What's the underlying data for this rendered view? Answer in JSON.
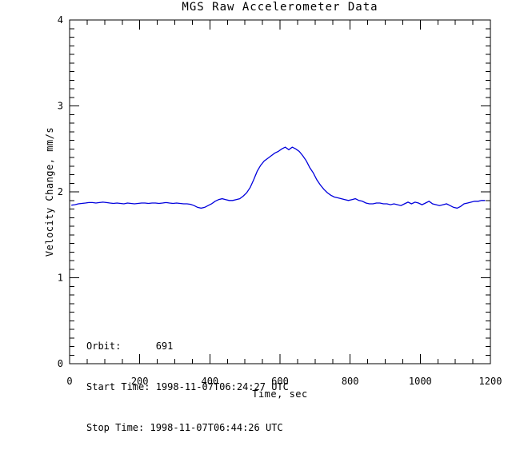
{
  "title": "MGS Raw Accelerometer Data",
  "annotations": {
    "orbit_line": "Orbit:      691",
    "start_line": "Start Time: 1998-11-07T06:24:27 UTC",
    "stop_line": "Stop Time: 1998-11-07T06:44:26 UTC"
  },
  "chart_data": {
    "type": "line",
    "title": "MGS Raw Accelerometer Data",
    "xlabel": "Time, sec",
    "ylabel": "Velocity Change, mm/s",
    "xlim": [
      0,
      1200
    ],
    "ylim": [
      0,
      4
    ],
    "x_major_ticks": [
      0,
      200,
      400,
      600,
      800,
      1000,
      1200
    ],
    "x_minor_step": 50,
    "y_major_ticks": [
      0,
      1,
      2,
      3,
      4
    ],
    "y_minor_step": 0.1,
    "grid": false,
    "legend": "none",
    "line_color": "#0000dd",
    "axis_color": "#000000",
    "background_color": "#ffffff",
    "annotations": [
      "Orbit:      691",
      "Start Time: 1998-11-07T06:24:27 UTC",
      "Stop Time: 1998-11-07T06:44:26 UTC"
    ],
    "series": [
      {
        "name": "velocity_change_mm_s",
        "x": [
          5,
          15,
          25,
          35,
          45,
          55,
          65,
          75,
          85,
          95,
          105,
          115,
          125,
          135,
          145,
          155,
          165,
          175,
          185,
          195,
          205,
          215,
          225,
          235,
          245,
          255,
          265,
          275,
          285,
          295,
          305,
          315,
          325,
          335,
          345,
          355,
          365,
          375,
          385,
          395,
          405,
          415,
          425,
          435,
          445,
          455,
          465,
          475,
          485,
          495,
          505,
          515,
          525,
          535,
          545,
          555,
          565,
          575,
          585,
          595,
          605,
          615,
          625,
          635,
          645,
          655,
          665,
          675,
          685,
          695,
          705,
          715,
          725,
          735,
          745,
          755,
          765,
          775,
          785,
          795,
          805,
          815,
          825,
          835,
          845,
          855,
          865,
          875,
          885,
          895,
          905,
          915,
          925,
          935,
          945,
          955,
          965,
          975,
          985,
          995,
          1005,
          1015,
          1025,
          1035,
          1045,
          1055,
          1065,
          1075,
          1085,
          1095,
          1105,
          1115,
          1125,
          1135,
          1145,
          1155,
          1165,
          1175,
          1185
        ],
        "y": [
          1.845,
          1.85,
          1.86,
          1.865,
          1.87,
          1.875,
          1.875,
          1.87,
          1.875,
          1.88,
          1.875,
          1.87,
          1.865,
          1.87,
          1.865,
          1.86,
          1.87,
          1.865,
          1.86,
          1.865,
          1.87,
          1.87,
          1.865,
          1.87,
          1.87,
          1.865,
          1.87,
          1.875,
          1.87,
          1.865,
          1.87,
          1.865,
          1.86,
          1.86,
          1.855,
          1.84,
          1.82,
          1.81,
          1.82,
          1.84,
          1.86,
          1.89,
          1.91,
          1.92,
          1.91,
          1.9,
          1.9,
          1.91,
          1.92,
          1.95,
          1.99,
          2.05,
          2.14,
          2.24,
          2.31,
          2.36,
          2.39,
          2.42,
          2.45,
          2.47,
          2.5,
          2.52,
          2.49,
          2.52,
          2.5,
          2.47,
          2.42,
          2.36,
          2.28,
          2.22,
          2.14,
          2.08,
          2.03,
          1.99,
          1.96,
          1.94,
          1.93,
          1.92,
          1.91,
          1.9,
          1.91,
          1.92,
          1.9,
          1.89,
          1.87,
          1.86,
          1.86,
          1.87,
          1.87,
          1.86,
          1.86,
          1.85,
          1.86,
          1.85,
          1.84,
          1.86,
          1.88,
          1.86,
          1.88,
          1.87,
          1.85,
          1.87,
          1.89,
          1.86,
          1.85,
          1.84,
          1.85,
          1.86,
          1.84,
          1.82,
          1.81,
          1.83,
          1.86,
          1.87,
          1.88,
          1.89,
          1.89,
          1.9,
          1.9
        ]
      }
    ]
  }
}
